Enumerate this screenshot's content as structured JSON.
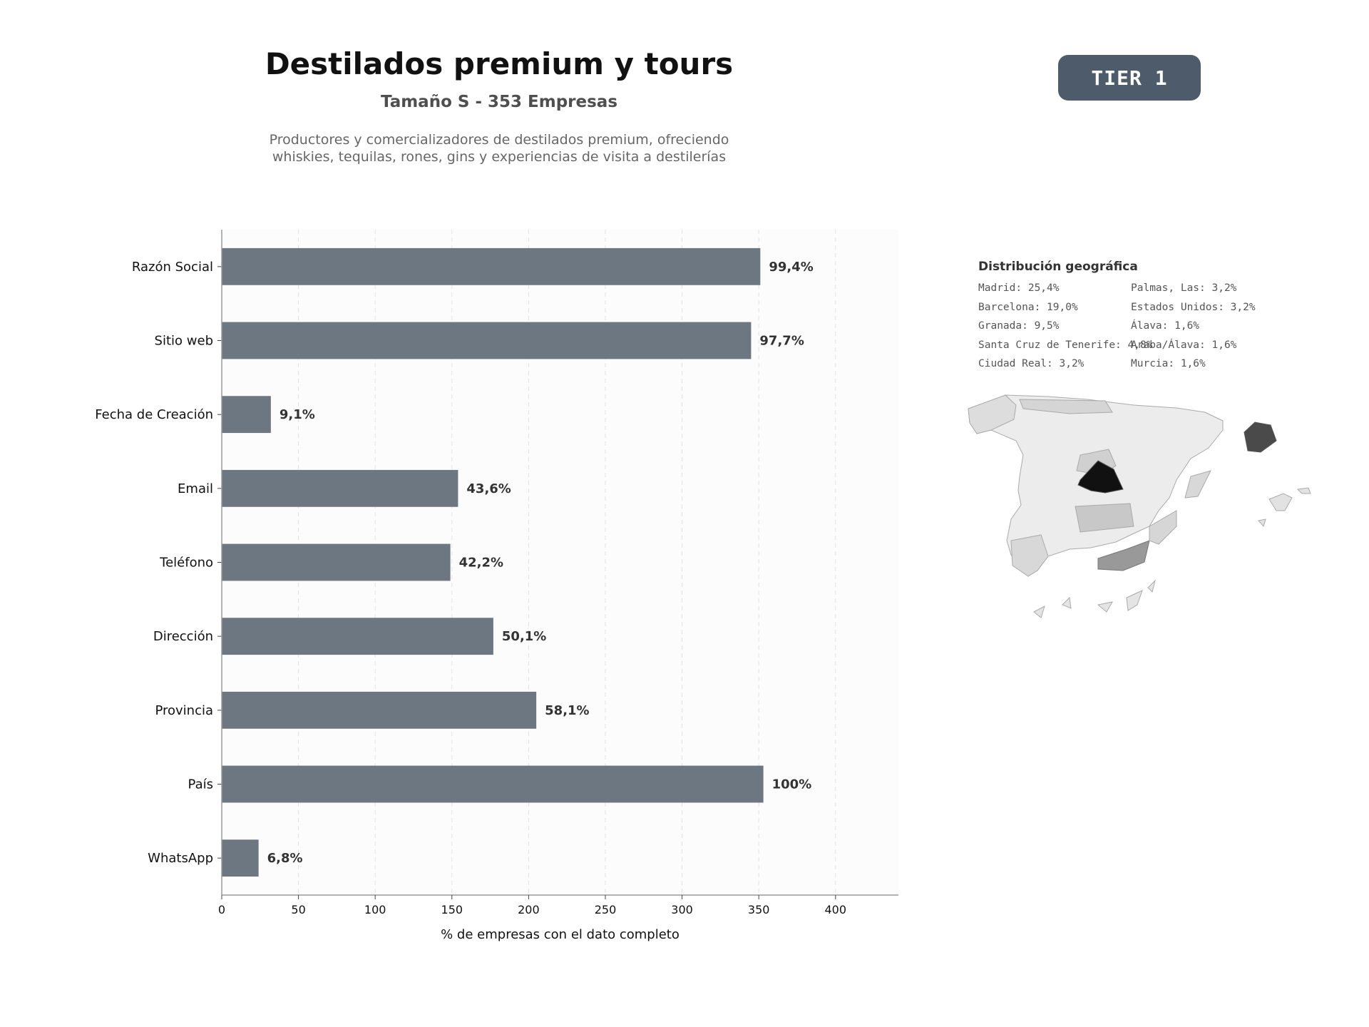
{
  "header": {
    "title": "Destilados premium y tours",
    "subtitle": "Tamaño S - 353 Empresas",
    "description": "Productores y comercializadores de destilados premium, ofreciendo\nwhiskies, tequilas, rones, gins y experiencias de visita a destilerías"
  },
  "badge": {
    "label": "TIER 1",
    "color": "#4d5b6a"
  },
  "chart_data": {
    "type": "bar",
    "orientation": "horizontal",
    "categories": [
      "Razón Social",
      "Sitio web",
      "Fecha de Creación",
      "Email",
      "Teléfono",
      "Dirección",
      "Provincia",
      "País",
      "WhatsApp"
    ],
    "values": [
      351,
      345,
      32,
      154,
      149,
      177,
      205,
      353,
      24
    ],
    "data_labels": [
      "99,4%",
      "97,7%",
      "9,1%",
      "43,6%",
      "42,2%",
      "50,1%",
      "58,1%",
      "100%",
      "6,8%"
    ],
    "xlabel": "% de empresas con el dato completo",
    "ylabel": "",
    "xlim": [
      0,
      441
    ],
    "xticks": [
      0,
      50,
      100,
      150,
      200,
      250,
      300,
      350,
      400
    ],
    "grid": "vertical dashed",
    "bar_color": "#6c7782",
    "legend": "none"
  },
  "geo": {
    "title": "Distribución geográfica",
    "items": [
      "Madrid: 25,4%",
      "Barcelona: 19,0%",
      "Granada: 9,5%",
      "Santa Cruz de Tenerife: 4,8%",
      "Ciudad Real: 3,2%",
      "Palmas, Las: 3,2%",
      "Estados Unidos: 3,2%",
      "Álava: 1,6%",
      "Araba/Álava: 1,6%",
      "Murcia: 1,6%"
    ]
  }
}
